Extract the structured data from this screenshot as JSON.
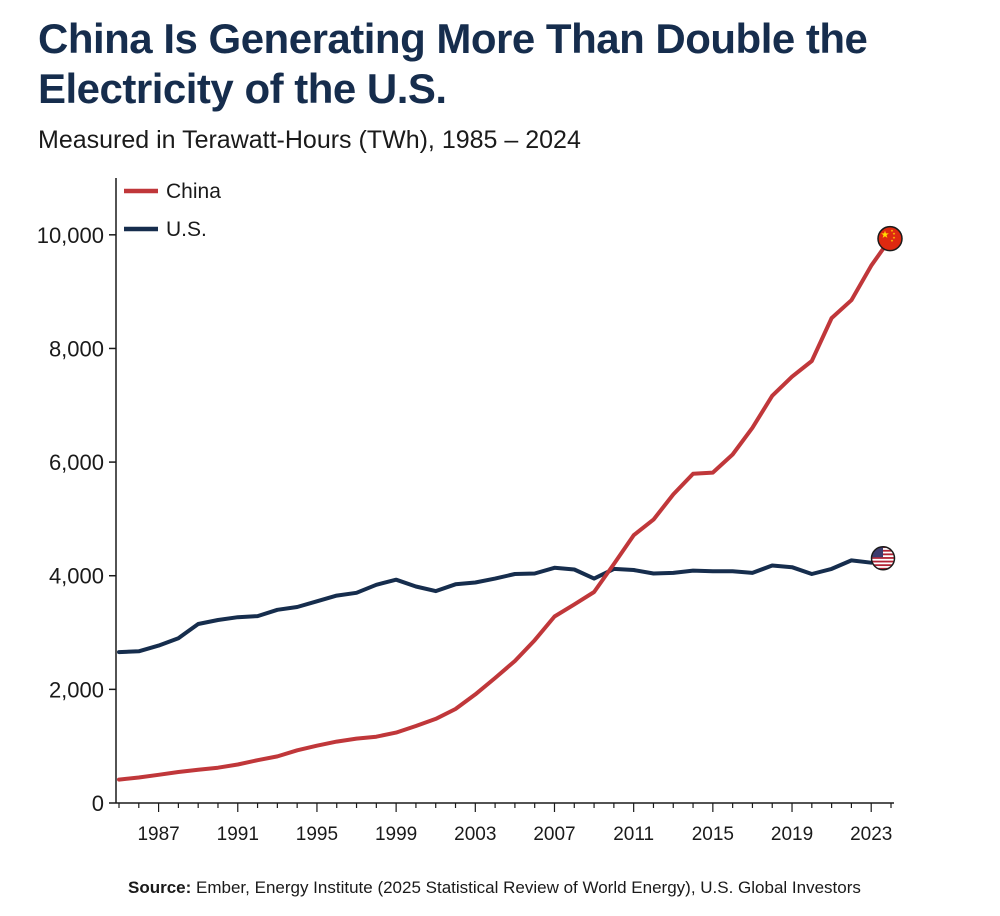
{
  "header": {
    "title": "China Is Generating More Than Double the Electricity of the U.S.",
    "subtitle": "Measured in Terawatt-Hours (TWh), 1985 – 2024"
  },
  "footer": {
    "source_label": "Source:",
    "source_text": " Ember, Energy Institute (2025 Statistical Review of World Energy), U.S. Global Investors"
  },
  "colors": {
    "china": "#c0373a",
    "us": "#162d4d",
    "axis": "#1a1a1a"
  },
  "chart_data": {
    "type": "line",
    "title": "China Is Generating More Than Double the Electricity of the U.S.",
    "subtitle": "Measured in Terawatt-Hours (TWh), 1985 – 2024",
    "xlabel": "",
    "ylabel": "",
    "xlim": [
      1985,
      2024
    ],
    "ylim": [
      0,
      11000
    ],
    "x_ticks": [
      1987,
      1991,
      1995,
      1999,
      2003,
      2007,
      2011,
      2015,
      2019,
      2023
    ],
    "y_ticks": [
      0,
      2000,
      4000,
      6000,
      8000,
      10000
    ],
    "y_tick_labels": [
      "0",
      "2,000",
      "4,000",
      "6,000",
      "8,000",
      "10,000"
    ],
    "grid": false,
    "legend_position": "top-left",
    "end_markers": [
      {
        "series": "China",
        "icon": "china-flag-icon"
      },
      {
        "series": "U.S.",
        "icon": "us-flag-icon"
      }
    ],
    "x": [
      1985,
      1986,
      1987,
      1988,
      1989,
      1990,
      1991,
      1992,
      1993,
      1994,
      1995,
      1996,
      1997,
      1998,
      1999,
      2000,
      2001,
      2002,
      2003,
      2004,
      2005,
      2006,
      2007,
      2008,
      2009,
      2010,
      2011,
      2012,
      2013,
      2014,
      2015,
      2016,
      2017,
      2018,
      2019,
      2020,
      2021,
      2022,
      2023,
      2024
    ],
    "series": [
      {
        "name": "China",
        "color": "#c0373a",
        "values": [
          411,
          449,
          497,
          545,
          584,
          621,
          678,
          754,
          820,
          928,
          1008,
          1081,
          1134,
          1167,
          1239,
          1356,
          1480,
          1654,
          1911,
          2200,
          2500,
          2866,
          3282,
          3496,
          3714,
          4207,
          4713,
          4988,
          5432,
          5794,
          5815,
          6133,
          6604,
          7166,
          7503,
          7779,
          8534,
          8849,
          9456,
          9950
        ]
      },
      {
        "name": "U.S.",
        "color": "#162d4d",
        "values": [
          2655,
          2670,
          2770,
          2900,
          3150,
          3220,
          3270,
          3290,
          3400,
          3450,
          3550,
          3650,
          3700,
          3840,
          3930,
          3810,
          3730,
          3850,
          3880,
          3950,
          4030,
          4040,
          4140,
          4110,
          3950,
          4120,
          4100,
          4040,
          4050,
          4090,
          4080,
          4080,
          4050,
          4180,
          4150,
          4030,
          4120,
          4270,
          4230,
          4290
        ]
      }
    ]
  }
}
